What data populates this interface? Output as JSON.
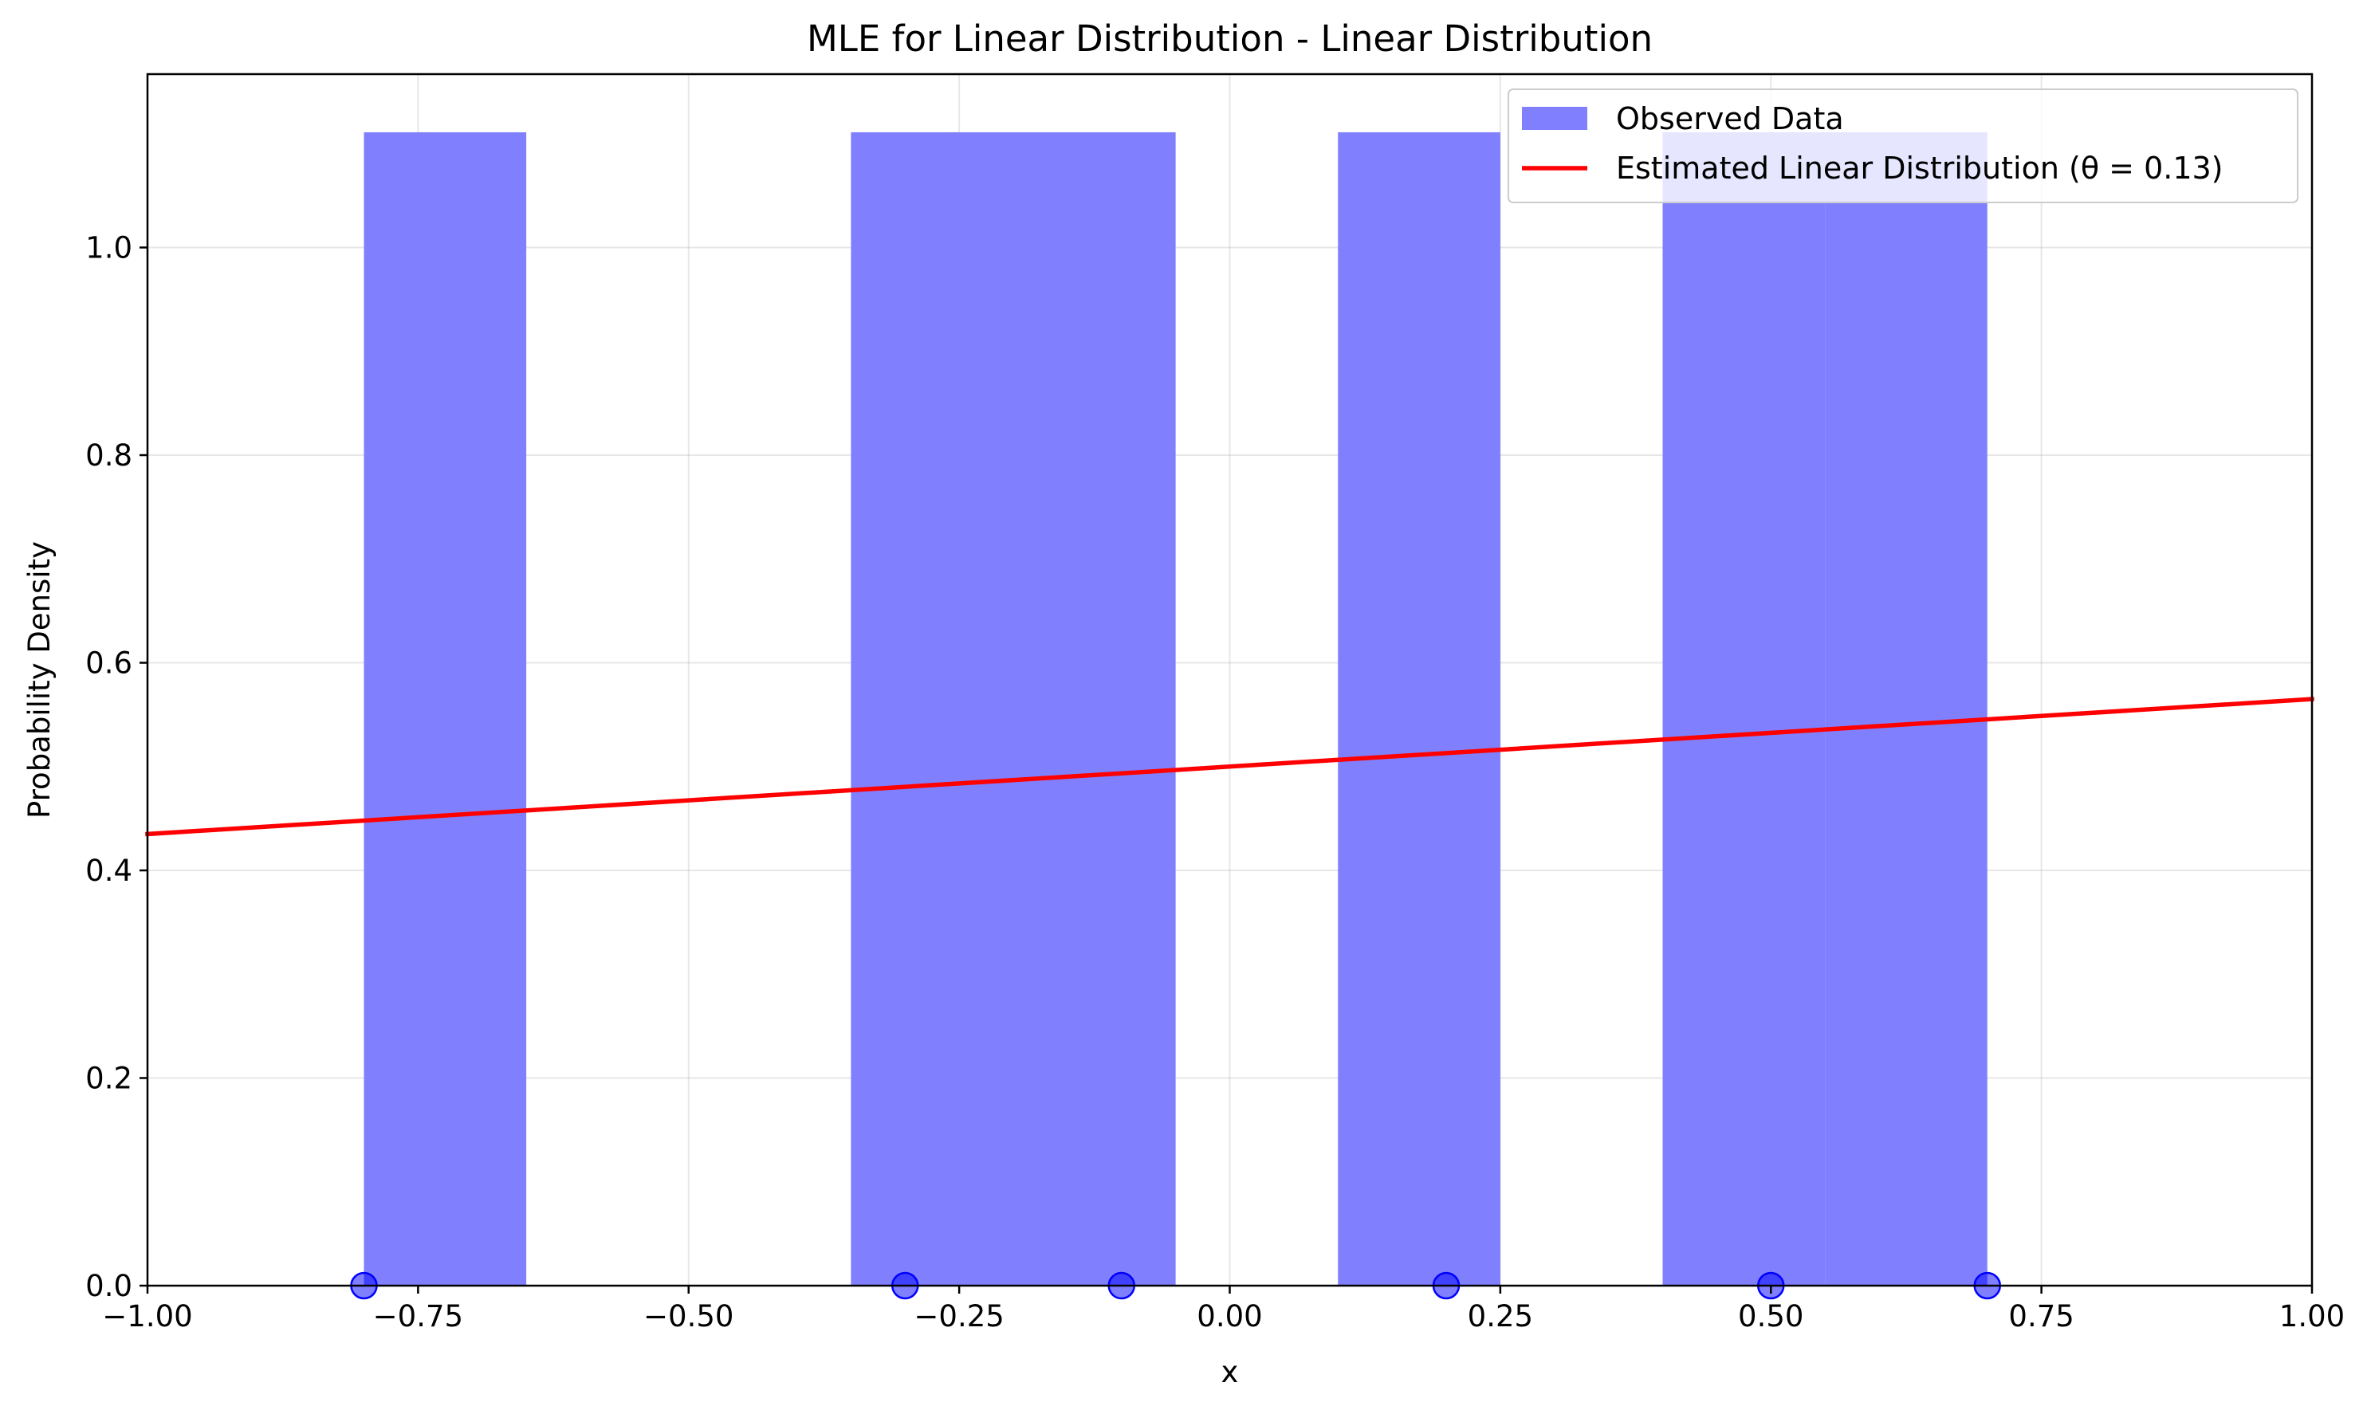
{
  "chart_data": {
    "type": "bar",
    "title": "MLE for Linear Distribution - Linear Distribution",
    "xlabel": "x",
    "ylabel": "Probability Density",
    "xlim": [
      -1.0,
      1.0
    ],
    "ylim": [
      0.0,
      1.167
    ],
    "x_ticks": [
      -1.0,
      -0.75,
      -0.5,
      -0.25,
      0.0,
      0.25,
      0.5,
      0.75,
      1.0
    ],
    "x_tick_labels": [
      "−1.00",
      "−0.75",
      "−0.50",
      "−0.25",
      "0.00",
      "0.25",
      "0.50",
      "0.75",
      "1.00"
    ],
    "y_ticks": [
      0.0,
      0.2,
      0.4,
      0.6,
      0.8,
      1.0
    ],
    "y_tick_labels": [
      "0.0",
      "0.2",
      "0.4",
      "0.6",
      "0.8",
      "1.0"
    ],
    "grid": true,
    "legend_position": "top-right",
    "histogram": {
      "name": "Observed Data",
      "color": "#8080ff",
      "bins": [
        {
          "x0": -0.8,
          "x1": -0.65,
          "value": 1.111
        },
        {
          "x0": -0.65,
          "x1": -0.5,
          "value": 0.0
        },
        {
          "x0": -0.5,
          "x1": -0.35,
          "value": 0.0
        },
        {
          "x0": -0.35,
          "x1": -0.2,
          "value": 1.111
        },
        {
          "x0": -0.2,
          "x1": -0.05,
          "value": 1.111
        },
        {
          "x0": -0.05,
          "x1": 0.1,
          "value": 0.0
        },
        {
          "x0": 0.1,
          "x1": 0.25,
          "value": 1.111
        },
        {
          "x0": 0.25,
          "x1": 0.4,
          "value": 0.0
        },
        {
          "x0": 0.4,
          "x1": 0.55,
          "value": 1.111
        },
        {
          "x0": 0.55,
          "x1": 0.7,
          "value": 1.111
        }
      ]
    },
    "line": {
      "name": "Estimated Linear Distribution (θ = 0.13)",
      "color": "#ff0000",
      "theta": 0.13,
      "points": [
        [
          -1.0,
          0.435
        ],
        [
          1.0,
          0.565
        ]
      ]
    },
    "samples": {
      "color": "#0000ff",
      "x": [
        -0.8,
        -0.3,
        -0.1,
        0.2,
        0.5,
        0.7
      ],
      "y": [
        0,
        0,
        0,
        0,
        0,
        0
      ]
    }
  }
}
